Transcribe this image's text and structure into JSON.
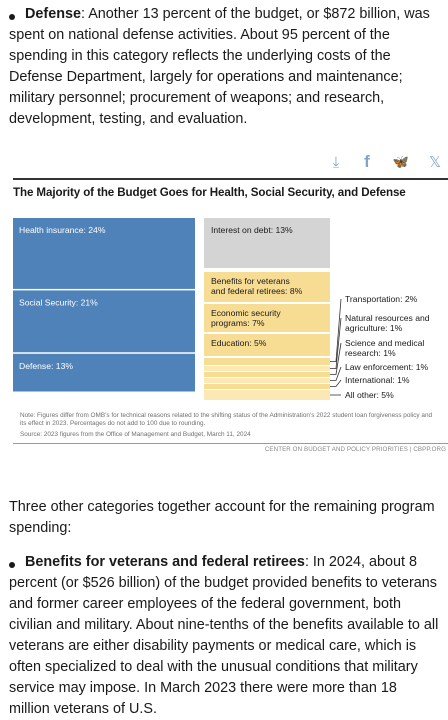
{
  "article": {
    "defense_bullet": {
      "term": "Defense",
      "text": ": Another 13 percent of the budget, or $872 billion, was spent on national defense activities. About 95 percent of the spending in this category reflects the underlying costs of the Defense Department, largely for operations and maintenance; military personnel; procurement of weapons; and research, development, testing, and evaluation."
    },
    "intro": "Three other categories together account for the remaining program spending:",
    "veterans_bullet": {
      "term": "Benefits for veterans and federal retirees",
      "text": ": In 2024, about 8 percent (or $526 billion) of the budget provided benefits to veterans and former career employees of the federal government, both civilian and military. About nine-tenths of the benefits available to all veterans are either disability payments or medical care, which is often specialized to deal with the unusual conditions that military service may impose. In March 2023 there were more than 18 million veterans of U.S."
    }
  },
  "share_icons": [
    "download-icon",
    "facebook-icon",
    "bluesky-icon",
    "x-icon"
  ],
  "share_glyphs": {
    "download": "⤓",
    "facebook": "f",
    "bluesky": "🦋",
    "x": "𝕏"
  },
  "colors": {
    "blue": "#4f82b9",
    "gray": "#d4d4d4",
    "yellow": "#f7dc93",
    "yellow_light": "#fbe8b5",
    "text_dark": "#1a1a1a"
  },
  "chart_data": {
    "type": "treemap",
    "title": "The Majority of the Budget Goes for Health, Social Security, and Defense",
    "unit": "percent of budget",
    "segments": [
      {
        "label": "Health insurance",
        "value": 24,
        "display": "Health insurance: 24%",
        "group": "blue"
      },
      {
        "label": "Social Security",
        "value": 21,
        "display": "Social Security: 21%",
        "group": "blue"
      },
      {
        "label": "Defense",
        "value": 13,
        "display": "Defense: 13%",
        "group": "blue"
      },
      {
        "label": "Interest on debt",
        "value": 13,
        "display": "Interest on debt: 13%",
        "group": "gray"
      },
      {
        "label": "Benefits for veterans and federal retirees",
        "value": 8,
        "display_lines": [
          "Benefits for veterans",
          "and federal retirees: 8%"
        ],
        "group": "yellow"
      },
      {
        "label": "Economic security programs",
        "value": 7,
        "display_lines": [
          "Economic security",
          "programs: 7%"
        ],
        "group": "yellow"
      },
      {
        "label": "Education",
        "value": 5,
        "display": "Education: 5%",
        "group": "yellow"
      },
      {
        "label": "Transportation",
        "value": 2,
        "display_lines": [
          "Transportation: 2%"
        ],
        "group": "yellow-small"
      },
      {
        "label": "Natural resources and agriculture",
        "value": 1,
        "display_lines": [
          "Natural resources and",
          "agriculture: 1%"
        ],
        "group": "yellow-small"
      },
      {
        "label": "Science and medical research",
        "value": 1,
        "display_lines": [
          "Science and medical",
          "research: 1%"
        ],
        "group": "yellow-small"
      },
      {
        "label": "Law enforcement",
        "value": 1,
        "display_lines": [
          "Law enforcement: 1%"
        ],
        "group": "yellow-small"
      },
      {
        "label": "International",
        "value": 1,
        "display_lines": [
          "International: 1%"
        ],
        "group": "yellow-small"
      },
      {
        "label": "All other",
        "value": 5,
        "display_lines": [
          "All other: 5%"
        ],
        "group": "yellow-small"
      }
    ],
    "note": "Note: Figures differ from OMB’s for technical reasons related to the shifting status of the Administration’s 2022 student loan forgiveness policy and its effect in 2023. Percentages do not add to 100 due to rounding.",
    "source": "Source: 2023 figures from the Office of Management and Budget, March 11, 2024",
    "credit": "CENTER ON BUDGET AND POLICY PRIORITIES | CBPP.ORG"
  }
}
